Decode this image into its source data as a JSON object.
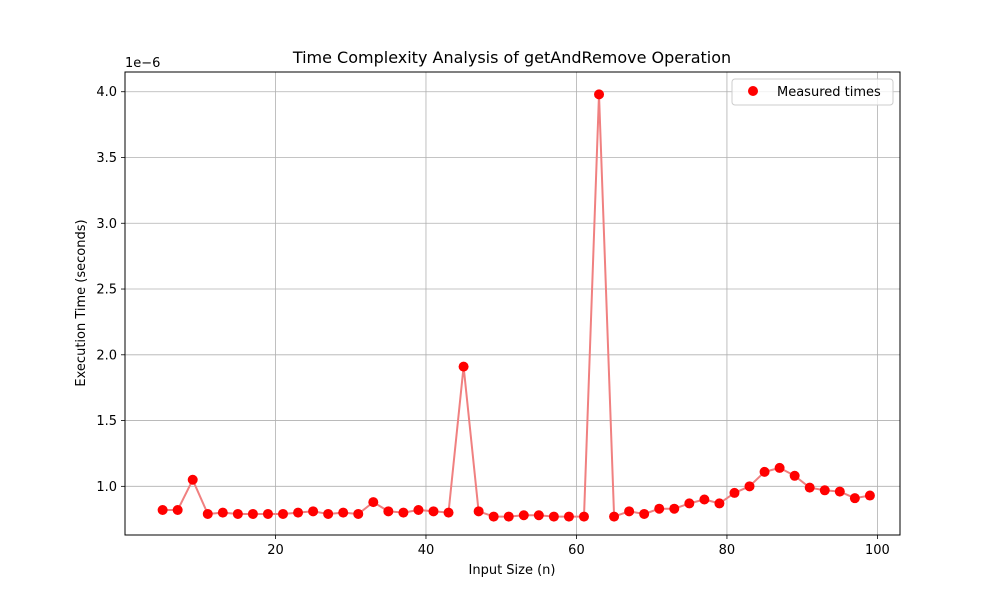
{
  "chart_data": {
    "type": "scatter",
    "title": "Time Complexity Analysis of getAndRemove Operation",
    "xlabel": "Input Size (n)",
    "ylabel": "Execution Time (seconds)",
    "y_offset_label": "1e−6",
    "xlim": [
      0,
      103
    ],
    "ylim": [
      0.63,
      4.15
    ],
    "x_ticks": [
      20,
      40,
      60,
      80,
      100
    ],
    "y_ticks": [
      1.0,
      1.5,
      2.0,
      2.5,
      3.0,
      3.5,
      4.0
    ],
    "x_tick_labels": [
      "20",
      "40",
      "60",
      "80",
      "100"
    ],
    "y_tick_labels": [
      "1.0",
      "1.5",
      "2.0",
      "2.5",
      "3.0",
      "3.5",
      "4.0"
    ],
    "grid": true,
    "legend_position": "top-right",
    "series": [
      {
        "name": "Measured times",
        "marker_color": "#ff0000",
        "line_color": "#f08080",
        "x": [
          5,
          7,
          9,
          11,
          13,
          15,
          17,
          19,
          21,
          23,
          25,
          27,
          29,
          31,
          33,
          35,
          37,
          39,
          41,
          43,
          45,
          47,
          49,
          51,
          53,
          55,
          57,
          59,
          61,
          63,
          65,
          67,
          69,
          71,
          73,
          75,
          77,
          79,
          81,
          83,
          85,
          87,
          89,
          91,
          93,
          95,
          97,
          99
        ],
        "y": [
          0.82,
          0.82,
          1.05,
          0.79,
          0.8,
          0.79,
          0.79,
          0.79,
          0.79,
          0.8,
          0.81,
          0.79,
          0.8,
          0.79,
          0.88,
          0.81,
          0.8,
          0.82,
          0.81,
          0.8,
          1.91,
          0.81,
          0.77,
          0.77,
          0.78,
          0.78,
          0.77,
          0.77,
          0.77,
          3.98,
          0.77,
          0.81,
          0.79,
          0.83,
          0.83,
          0.87,
          0.9,
          0.87,
          0.95,
          1.0,
          1.11,
          1.14,
          1.08,
          0.99,
          0.97,
          0.96,
          0.91,
          0.93
        ]
      }
    ]
  }
}
